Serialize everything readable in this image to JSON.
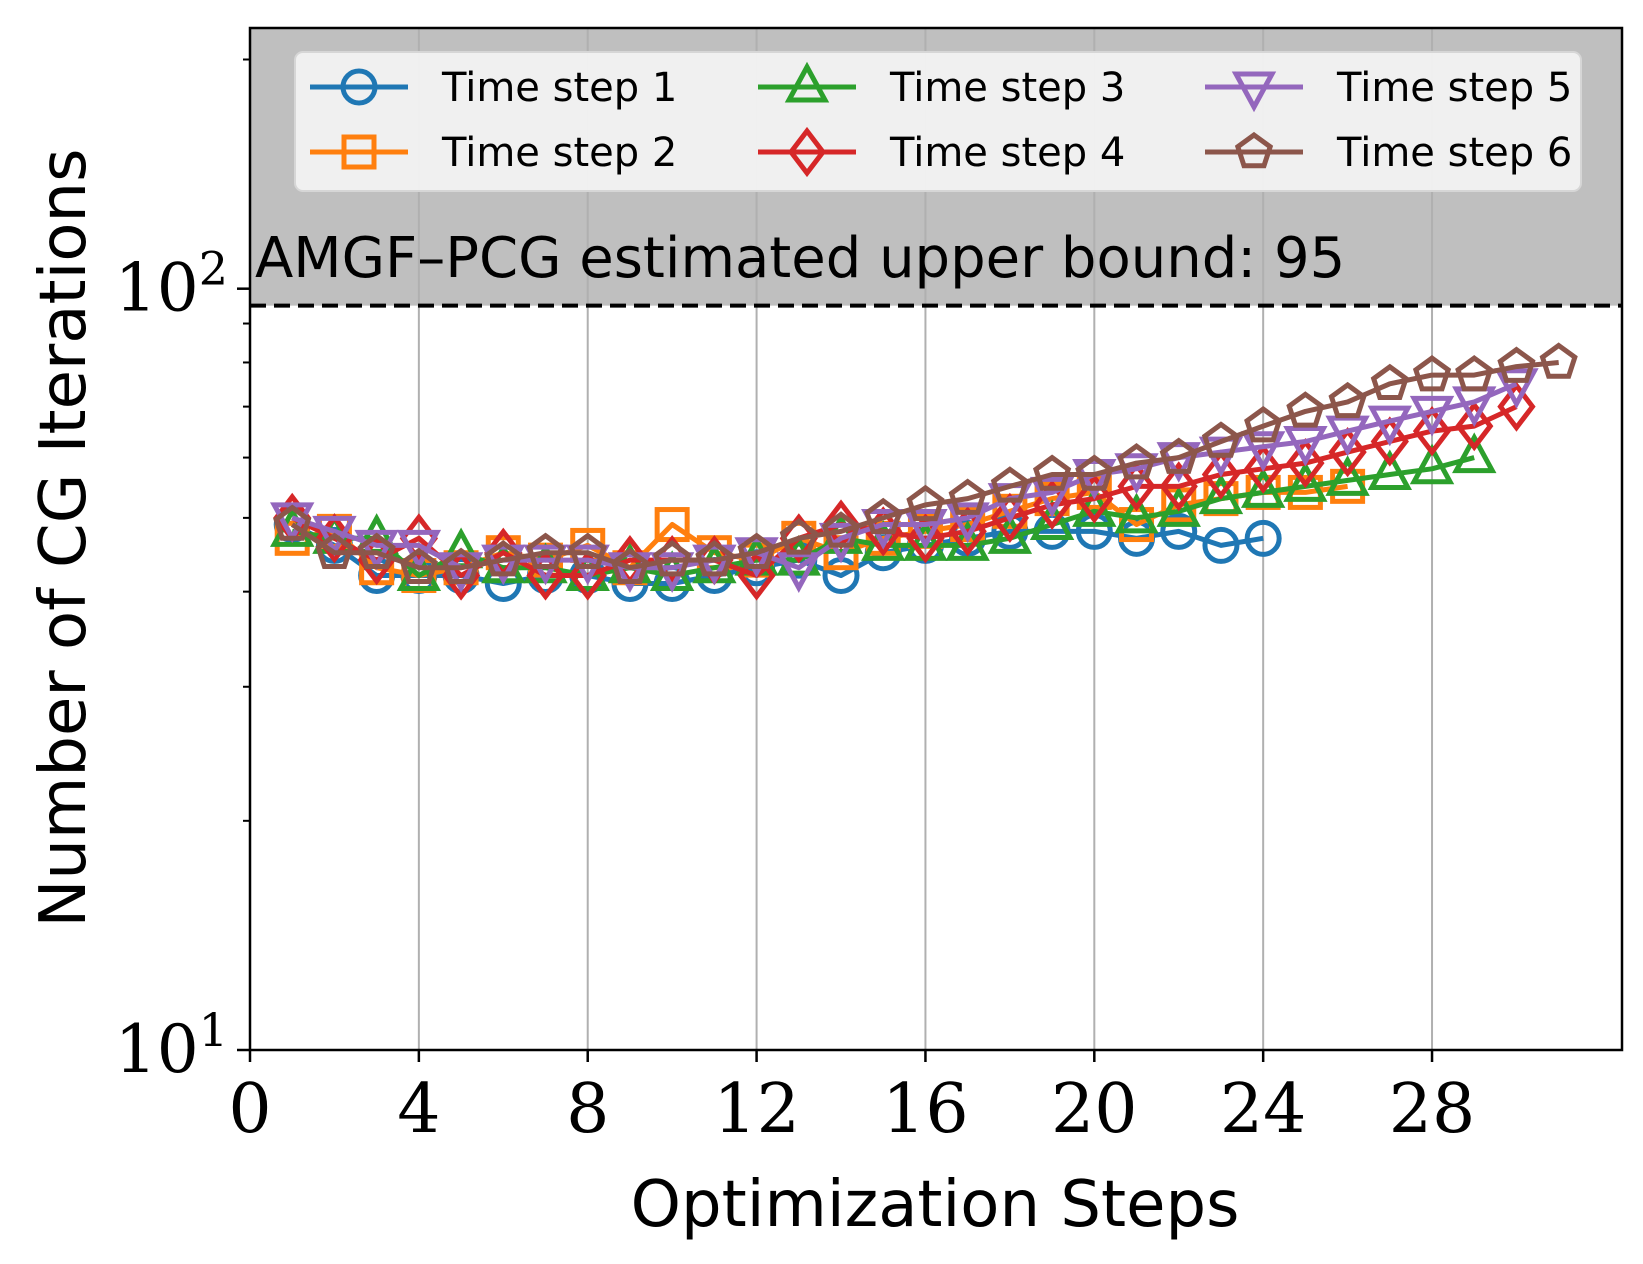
{
  "chart_data": {
    "type": "line",
    "title": "",
    "xlabel": "Optimization Steps",
    "ylabel": "Number of CG Iterations",
    "yscale": "log",
    "xlim": [
      0,
      32.5
    ],
    "ylim": [
      10,
      220
    ],
    "x_ticks": [
      0,
      4,
      8,
      12,
      16,
      20,
      24,
      28
    ],
    "x_tick_labels": [
      "0",
      "4",
      "8",
      "12",
      "16",
      "20",
      "24",
      "28"
    ],
    "y_ticks": [
      {
        "value": 10,
        "base": "10",
        "exp": "1"
      },
      {
        "value": 100,
        "base": "10",
        "exp": "2"
      }
    ],
    "grid": "x-major",
    "legend_location": "top",
    "upper_bound": {
      "value": 95,
      "label": "AMGF–PCG estimated upper bound: 95",
      "shaded_region": "above"
    },
    "series": [
      {
        "name": "Time step 1",
        "color": "#1f77b4",
        "marker": "circle",
        "x": [
          1,
          2,
          3,
          4,
          5,
          6,
          7,
          8,
          9,
          10,
          11,
          12,
          13,
          14,
          15,
          16,
          17,
          18,
          19,
          20,
          21,
          22,
          23,
          24
        ],
        "y": [
          49,
          46,
          42,
          42,
          42,
          41,
          42,
          42,
          41,
          41,
          42,
          43,
          44,
          42,
          45,
          46,
          47,
          48,
          48,
          48,
          47,
          48,
          46,
          47
        ]
      },
      {
        "name": "Time step 2",
        "color": "#ff7f0e",
        "marker": "square",
        "x": [
          1,
          2,
          3,
          4,
          5,
          6,
          7,
          8,
          9,
          10,
          11,
          12,
          13,
          14,
          15,
          16,
          17,
          18,
          19,
          20,
          21,
          22,
          23,
          24,
          25,
          26
        ],
        "y": [
          47,
          48,
          43,
          42,
          43,
          45,
          44,
          46,
          43,
          49,
          45,
          44,
          47,
          45,
          47,
          48,
          49,
          51,
          53,
          54,
          49,
          52,
          53,
          54,
          54,
          55
        ]
      },
      {
        "name": "Time step 3",
        "color": "#2ca02c",
        "marker": "triangle-up",
        "x": [
          1,
          2,
          3,
          4,
          5,
          6,
          7,
          8,
          9,
          10,
          11,
          12,
          13,
          14,
          15,
          16,
          17,
          18,
          19,
          20,
          21,
          22,
          23,
          24,
          25,
          26,
          27,
          28,
          29
        ],
        "y": [
          48,
          47,
          47,
          42,
          45,
          43,
          43,
          42,
          43,
          42,
          43,
          44,
          44,
          47,
          46,
          46,
          46,
          47,
          49,
          51,
          50,
          51,
          53,
          54,
          55,
          56,
          57,
          58,
          60
        ]
      },
      {
        "name": "Time step 4",
        "color": "#d62728",
        "marker": "diamond",
        "x": [
          1,
          2,
          3,
          4,
          5,
          6,
          7,
          8,
          9,
          10,
          11,
          12,
          13,
          14,
          15,
          16,
          17,
          18,
          19,
          20,
          21,
          22,
          23,
          24,
          25,
          26,
          27,
          28,
          29,
          30
        ],
        "y": [
          50,
          47,
          44,
          47,
          42,
          45,
          42,
          42,
          44,
          44,
          44,
          42,
          47,
          49,
          48,
          47,
          48,
          50,
          52,
          53,
          55,
          55,
          57,
          58,
          59,
          61,
          63,
          65,
          66,
          70
        ]
      },
      {
        "name": "Time step 5",
        "color": "#9467bd",
        "marker": "triangle-down",
        "x": [
          1,
          2,
          3,
          4,
          5,
          6,
          7,
          8,
          9,
          10,
          11,
          12,
          13,
          14,
          15,
          16,
          17,
          18,
          19,
          20,
          21,
          22,
          23,
          24,
          25,
          26,
          27,
          28,
          29,
          30
        ],
        "y": [
          50,
          48,
          46,
          46,
          43,
          44,
          44,
          44,
          43,
          43,
          44,
          45,
          43,
          47,
          49,
          49,
          50,
          53,
          54,
          57,
          58,
          60,
          61,
          62,
          63,
          65,
          67,
          69,
          71,
          75
        ]
      },
      {
        "name": "Time step 6",
        "color": "#8c564b",
        "marker": "pentagon",
        "x": [
          1,
          2,
          3,
          4,
          5,
          6,
          7,
          8,
          9,
          10,
          11,
          12,
          13,
          14,
          15,
          16,
          17,
          18,
          19,
          20,
          21,
          22,
          23,
          24,
          25,
          26,
          27,
          28,
          29,
          30,
          31
        ],
        "y": [
          49,
          45,
          45,
          43,
          43,
          44,
          45,
          45,
          43,
          44,
          44,
          45,
          47,
          48,
          50,
          52,
          53,
          55,
          57,
          57,
          59,
          60,
          63,
          66,
          69,
          71,
          75,
          77,
          77,
          79,
          80
        ]
      }
    ]
  }
}
